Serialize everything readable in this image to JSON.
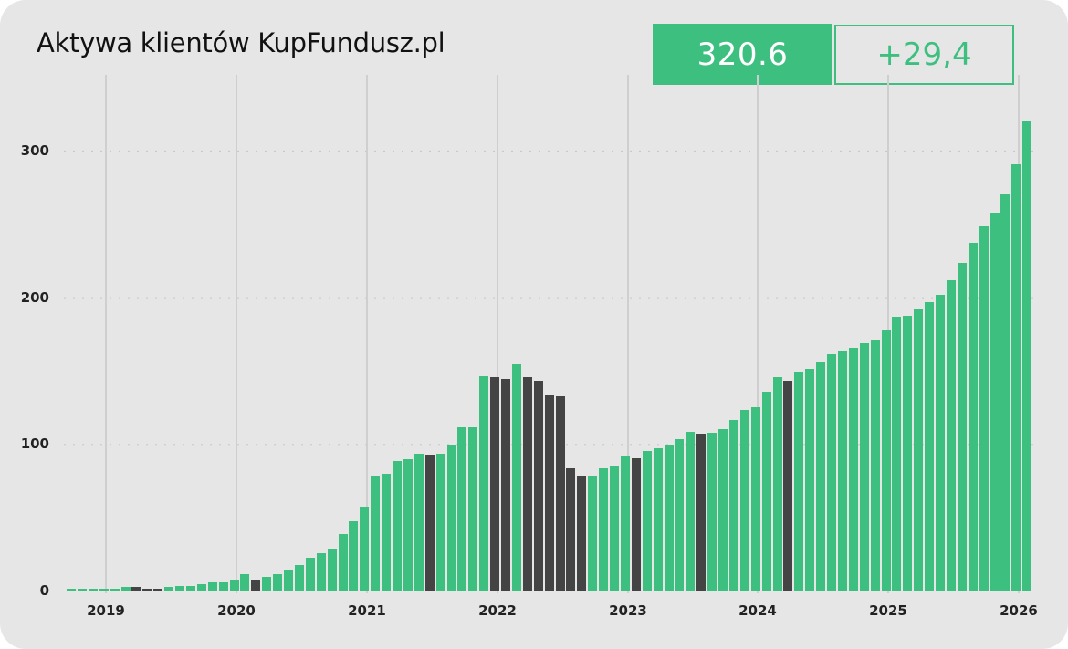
{
  "header": {
    "title": "Aktywa klientów KupFundusz.pl",
    "kpi_value": "320.6",
    "kpi_change": "+29,4"
  },
  "colors": {
    "accent": "#3dbf7f",
    "decline": "#444444",
    "background": "#e6e6e6",
    "gridline": "#cfcfcf"
  },
  "chart_data": {
    "type": "bar",
    "title": "Aktywa klientów KupFundusz.pl",
    "xlabel": "",
    "ylabel": "",
    "ylim": [
      0,
      330
    ],
    "yticks": [
      0,
      100,
      200,
      300
    ],
    "xtick_labels": [
      "2019",
      "2020",
      "2021",
      "2022",
      "2023",
      "2024",
      "2025",
      "2026"
    ],
    "grid": {
      "horizontal": "dotted",
      "vertical": "solid at year boundaries"
    },
    "legend": "none",
    "color_rule": "green = month-over-month increase, dark gray = decrease",
    "categories": [
      "2018-09",
      "2018-10",
      "2018-11",
      "2018-12",
      "2019-01",
      "2019-02",
      "2019-03",
      "2019-04",
      "2019-05",
      "2019-06",
      "2019-07",
      "2019-08",
      "2019-09",
      "2019-10",
      "2019-11",
      "2019-12",
      "2020-01",
      "2020-02",
      "2020-03",
      "2020-04",
      "2020-05",
      "2020-06",
      "2020-07",
      "2020-08",
      "2020-09",
      "2020-10",
      "2020-11",
      "2020-12",
      "2021-01",
      "2021-02",
      "2021-03",
      "2021-04",
      "2021-05",
      "2021-06",
      "2021-07",
      "2021-08",
      "2021-09",
      "2021-10",
      "2021-11",
      "2021-12",
      "2022-01",
      "2022-02",
      "2022-03",
      "2022-04",
      "2022-05",
      "2022-06",
      "2022-07",
      "2022-08",
      "2022-09",
      "2022-10",
      "2022-11",
      "2022-12",
      "2023-01",
      "2023-02",
      "2023-03",
      "2023-04",
      "2023-05",
      "2023-06",
      "2023-07",
      "2023-08",
      "2023-09",
      "2023-10",
      "2023-11",
      "2023-12",
      "2024-01",
      "2024-02",
      "2024-03",
      "2024-04",
      "2024-05",
      "2024-06",
      "2024-07",
      "2024-08",
      "2024-09",
      "2024-10",
      "2024-11",
      "2024-12",
      "2025-01",
      "2025-02",
      "2025-03",
      "2025-04",
      "2025-05",
      "2025-06",
      "2025-07",
      "2025-08",
      "2025-09",
      "2025-10",
      "2025-11",
      "2025-12",
      "2026-01"
    ],
    "values": [
      1,
      1,
      1,
      1,
      2,
      3,
      3,
      2,
      2,
      3,
      4,
      4,
      5,
      6,
      6,
      8,
      12,
      8,
      10,
      12,
      15,
      18,
      23,
      26,
      29,
      39,
      48,
      58,
      79,
      80,
      89,
      90,
      94,
      93,
      94,
      100,
      112,
      112,
      147,
      146,
      145,
      155,
      146,
      144,
      134,
      133,
      84,
      79,
      79,
      84,
      85,
      92,
      91,
      96,
      98,
      100,
      104,
      109,
      107,
      108,
      111,
      117,
      124,
      126,
      136,
      146,
      144,
      150,
      152,
      156,
      162,
      164,
      166,
      169,
      171,
      178,
      187,
      188,
      193,
      197,
      202,
      212,
      224,
      238,
      249,
      258,
      271,
      291,
      320.6
    ],
    "declines": [
      0,
      0,
      0,
      0,
      0,
      0,
      1,
      1,
      1,
      0,
      0,
      0,
      0,
      0,
      0,
      0,
      0,
      1,
      0,
      0,
      0,
      0,
      0,
      0,
      0,
      0,
      0,
      0,
      0,
      0,
      0,
      0,
      0,
      1,
      0,
      0,
      0,
      0,
      0,
      1,
      1,
      0,
      1,
      1,
      1,
      1,
      1,
      1,
      0,
      0,
      0,
      0,
      1,
      0,
      0,
      0,
      0,
      0,
      1,
      0,
      0,
      0,
      0,
      0,
      0,
      0,
      1,
      0,
      0,
      0,
      0,
      0,
      0,
      0,
      0,
      0,
      0,
      0,
      0,
      0,
      0,
      0,
      0,
      0,
      0,
      0,
      0,
      0,
      0
    ]
  }
}
